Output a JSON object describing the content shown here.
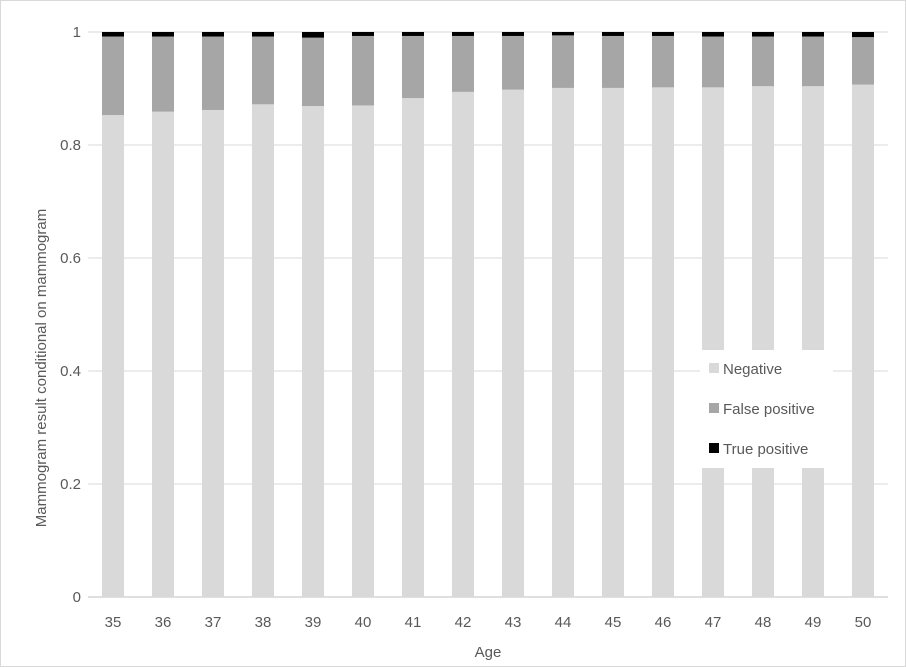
{
  "chart_data": {
    "type": "bar",
    "stacked": true,
    "xlabel": "Age",
    "ylabel": "Mammogram result conditional on mammogram",
    "ylim": [
      0,
      1
    ],
    "yticks": [
      "0",
      "0.2",
      "0.4",
      "0.6",
      "0.8",
      "1"
    ],
    "categories": [
      "35",
      "36",
      "37",
      "38",
      "39",
      "40",
      "41",
      "42",
      "43",
      "44",
      "45",
      "46",
      "47",
      "48",
      "49",
      "50"
    ],
    "series": [
      {
        "name": "Negative",
        "color": "#d9d9d9",
        "values": [
          0.853,
          0.859,
          0.862,
          0.872,
          0.869,
          0.87,
          0.883,
          0.894,
          0.898,
          0.901,
          0.901,
          0.902,
          0.902,
          0.904,
          0.904,
          0.907
        ]
      },
      {
        "name": "False positive",
        "color": "#a6a6a6",
        "values": [
          0.139,
          0.133,
          0.13,
          0.12,
          0.121,
          0.123,
          0.11,
          0.099,
          0.095,
          0.093,
          0.092,
          0.091,
          0.09,
          0.088,
          0.088,
          0.084
        ]
      },
      {
        "name": "True positive",
        "color": "#000000",
        "values": [
          0.008,
          0.008,
          0.008,
          0.008,
          0.01,
          0.007,
          0.007,
          0.007,
          0.007,
          0.006,
          0.007,
          0.007,
          0.008,
          0.008,
          0.008,
          0.009
        ]
      }
    ],
    "grid": true,
    "legend_position": "right-center"
  }
}
